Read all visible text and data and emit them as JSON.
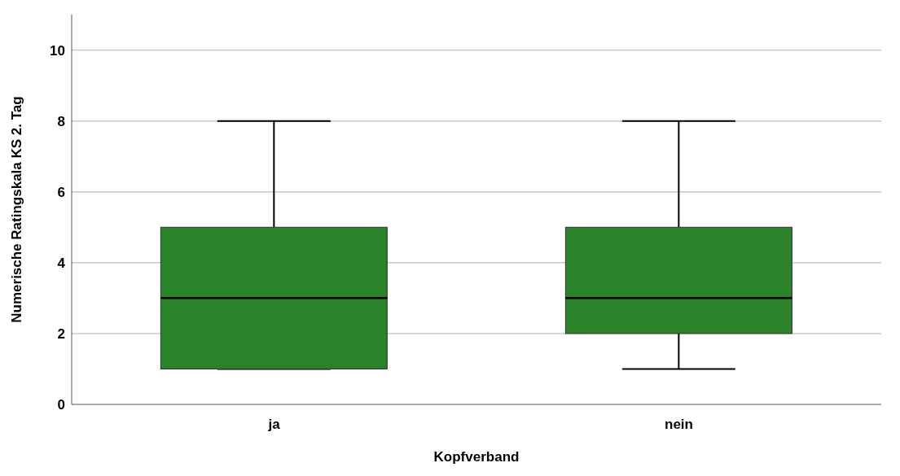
{
  "chart_data": {
    "type": "box",
    "xlabel": "Kopfverband",
    "ylabel": "Numerische Ratingskala KS 2. Tag",
    "categories": [
      "ja",
      "nein"
    ],
    "color": "#2a8229",
    "boxes": [
      {
        "low": 1,
        "q1": 1,
        "median": 3,
        "q3": 5,
        "high": 8
      },
      {
        "low": 1,
        "q1": 2,
        "median": 3,
        "q3": 5,
        "high": 8
      }
    ],
    "ylim": [
      0,
      11
    ],
    "yticks": [
      0,
      2,
      4,
      6,
      8,
      10
    ],
    "grid": "y"
  }
}
